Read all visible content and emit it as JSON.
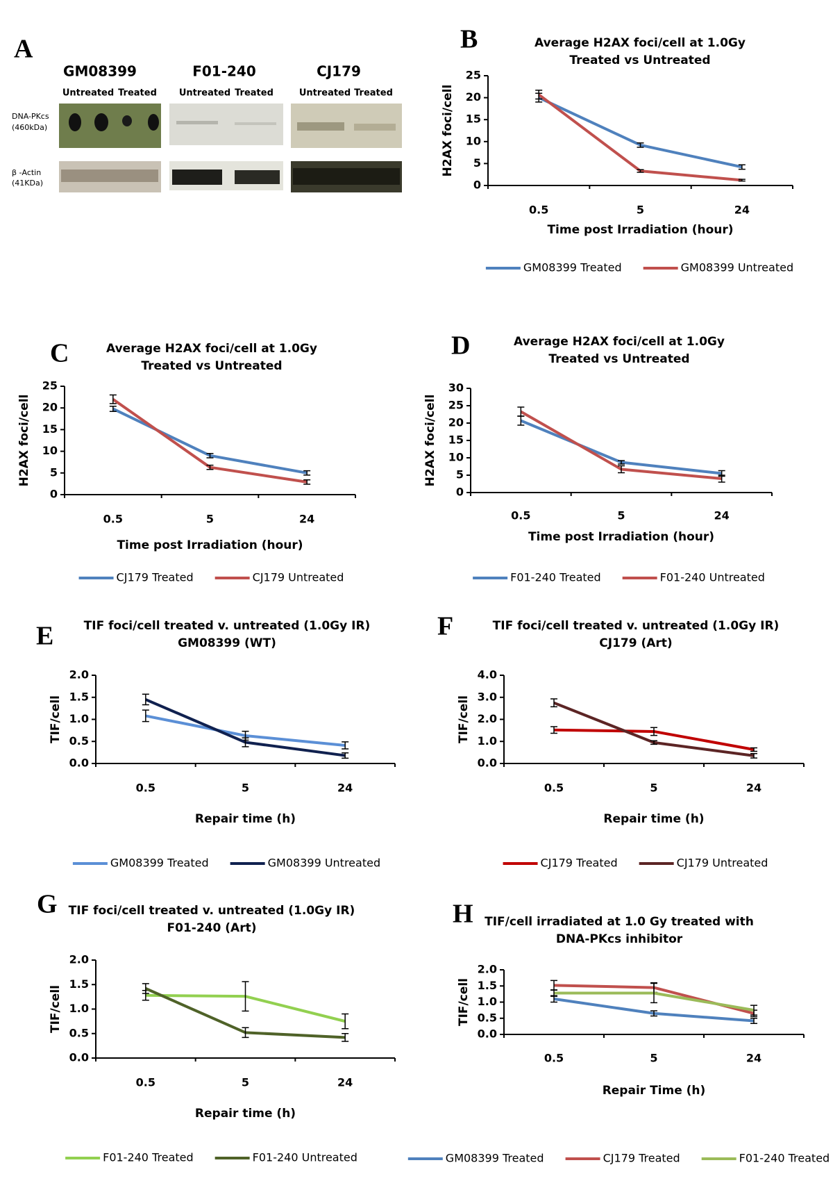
{
  "blot": {
    "label": "A",
    "cell_lines": [
      {
        "name": "GM08399",
        "lanes": [
          "Untreated",
          "Treated"
        ]
      },
      {
        "name": "F01-240",
        "lanes": [
          "Untreated",
          "Treated"
        ]
      },
      {
        "name": "CJ179",
        "lanes": [
          "Untreated",
          "Treated"
        ]
      }
    ],
    "rows": [
      {
        "name": "DNA-PKcs",
        "size": "(460kDa)"
      },
      {
        "name": "β -Actin",
        "size": "(41KDa)"
      }
    ]
  },
  "chart_data": [
    {
      "type": "line",
      "label": "B",
      "title": [
        "Average H2AX foci/cell at 1.0Gy",
        "Treated vs Untreated"
      ],
      "x_label": "Time post Irradiation (hour)",
      "y_label": "H2AX foci/cell",
      "categories": [
        "0.5",
        "5",
        "24"
      ],
      "ylim": [
        0,
        25
      ],
      "yticks": [
        0,
        5,
        10,
        15,
        20,
        25
      ],
      "legend": "bottom",
      "series": [
        {
          "name": "GM08399 Treated",
          "color": "#4f81bd",
          "values": [
            20,
            9.2,
            4.2
          ],
          "errors": [
            1,
            0.5,
            0.5
          ]
        },
        {
          "name": "GM08399 Untreated",
          "color": "#c0504d",
          "values": [
            20.7,
            3.3,
            1.2
          ],
          "errors": [
            1,
            0.3,
            0.2
          ]
        }
      ]
    },
    {
      "type": "line",
      "label": "C",
      "title": [
        "Average H2AX foci/cell at 1.0Gy",
        "Treated vs Untreated"
      ],
      "x_label": "Time post Irradiation (hour)",
      "y_label": "H2AX foci/cell",
      "categories": [
        "0.5",
        "5",
        "24"
      ],
      "ylim": [
        0,
        25
      ],
      "yticks": [
        0,
        5,
        10,
        15,
        20,
        25
      ],
      "legend": "bottom",
      "series": [
        {
          "name": "CJ179 Treated",
          "color": "#4f81bd",
          "values": [
            19.8,
            9,
            5
          ],
          "errors": [
            0.6,
            0.5,
            0.5
          ]
        },
        {
          "name": "CJ179 Untreated",
          "color": "#c0504d",
          "values": [
            22,
            6.3,
            2.9
          ],
          "errors": [
            1,
            0.5,
            0.5
          ]
        }
      ]
    },
    {
      "type": "line",
      "label": "D",
      "title": [
        "Average H2AX foci/cell at 1.0Gy",
        "Treated vs Untreated"
      ],
      "x_label": "Time post Irradiation (hour)",
      "y_label": "H2AX foci/cell",
      "categories": [
        "0.5",
        "5",
        "24"
      ],
      "ylim": [
        0,
        30
      ],
      "yticks": [
        0,
        5,
        10,
        15,
        20,
        25,
        30
      ],
      "legend": "bottom",
      "series": [
        {
          "name": "F01-240 Treated",
          "color": "#4f81bd",
          "values": [
            20.7,
            8.7,
            5.5
          ],
          "errors": [
            1.3,
            0.5,
            0.8
          ]
        },
        {
          "name": "F01-240 Untreated",
          "color": "#c0504d",
          "values": [
            23.3,
            6.7,
            4
          ],
          "errors": [
            1.3,
            1,
            1
          ]
        }
      ]
    },
    {
      "type": "line",
      "label": "E",
      "title": [
        "TIF foci/cell treated v. untreated (1.0Gy IR)",
        "GM08399 (WT)"
      ],
      "x_label": "Repair time (h)",
      "y_label": "TIF/cell",
      "categories": [
        "0.5",
        "5",
        "24"
      ],
      "ylim": [
        0,
        2
      ],
      "yticks": [
        {
          "value": 0,
          "label": "0.0"
        },
        {
          "value": 0.5,
          "label": "0.5"
        },
        {
          "value": 1,
          "label": "1.0"
        },
        {
          "value": 1.5,
          "label": "1.5"
        },
        {
          "value": 2,
          "label": "2.0"
        }
      ],
      "legend": "bottom",
      "series": [
        {
          "name": "GM08399 Treated",
          "color": "#5b8fd6",
          "values": [
            1.08,
            0.63,
            0.41
          ],
          "errors": [
            0.13,
            0.1,
            0.08
          ]
        },
        {
          "name": "GM08399 Untreated",
          "color": "#10214f",
          "values": [
            1.45,
            0.48,
            0.18
          ],
          "errors": [
            0.12,
            0.1,
            0.06
          ]
        }
      ]
    },
    {
      "type": "line",
      "label": "F",
      "title": [
        "TIF foci/cell treated v. untreated (1.0Gy IR)",
        "CJ179 (Art)"
      ],
      "x_label": "Repair time (h)",
      "y_label": "TIF/cell",
      "categories": [
        "0.5",
        "5",
        "24"
      ],
      "ylim": [
        0,
        4
      ],
      "yticks": [
        {
          "value": 0,
          "label": "0.0"
        },
        {
          "value": 1,
          "label": "1.0"
        },
        {
          "value": 2,
          "label": "2.0"
        },
        {
          "value": 3,
          "label": "3.0"
        },
        {
          "value": 4,
          "label": "4.0"
        }
      ],
      "legend": "bottom",
      "series": [
        {
          "name": "CJ179 Treated",
          "color": "#c00000",
          "values": [
            1.52,
            1.45,
            0.63
          ],
          "errors": [
            0.15,
            0.18,
            0.08
          ]
        },
        {
          "name": "CJ179 Untreated",
          "color": "#5c2525",
          "values": [
            2.75,
            0.95,
            0.35
          ],
          "errors": [
            0.18,
            0.08,
            0.1
          ]
        }
      ]
    },
    {
      "type": "line",
      "label": "G",
      "title": [
        "TIF foci/cell treated v. untreated (1.0Gy IR)",
        "F01-240 (Art)"
      ],
      "x_label": "Repair time (h)",
      "y_label": "TIF/cell",
      "categories": [
        "0.5",
        "5",
        "24"
      ],
      "ylim": [
        0,
        2
      ],
      "yticks": [
        {
          "value": 0,
          "label": "0.0"
        },
        {
          "value": 0.5,
          "label": "0.5"
        },
        {
          "value": 1,
          "label": "1.0"
        },
        {
          "value": 1.5,
          "label": "1.5"
        },
        {
          "value": 2,
          "label": "2.0"
        }
      ],
      "legend": "bottom",
      "series": [
        {
          "name": "F01-240 Treated",
          "color": "#92d050",
          "values": [
            1.28,
            1.26,
            0.75
          ],
          "errors": [
            0.1,
            0.3,
            0.15
          ]
        },
        {
          "name": "F01-240 Untreated",
          "color": "#4f6228",
          "values": [
            1.42,
            0.52,
            0.42
          ],
          "errors": [
            0.1,
            0.1,
            0.08
          ]
        }
      ]
    },
    {
      "type": "line",
      "label": "H",
      "title": [
        "TIF/cell irradiated at 1.0 Gy treated with",
        "DNA-PKcs inhibitor"
      ],
      "x_label": "Repair Time (h)",
      "y_label": "TIF/cell",
      "categories": [
        "0.5",
        "5",
        "24"
      ],
      "ylim": [
        0,
        2
      ],
      "yticks": [
        {
          "value": 0,
          "label": "0.0"
        },
        {
          "value": 0.5,
          "label": "0.5"
        },
        {
          "value": 1,
          "label": "1.0"
        },
        {
          "value": 1.5,
          "label": "1.5"
        },
        {
          "value": 2,
          "label": "2.0"
        }
      ],
      "legend": "bottom",
      "series": [
        {
          "name": "GM08399 Treated",
          "color": "#4f81bd",
          "values": [
            1.1,
            0.65,
            0.42
          ],
          "errors": [
            0.1,
            0.08,
            0.08
          ]
        },
        {
          "name": "CJ179 Treated",
          "color": "#c0504d",
          "values": [
            1.52,
            1.45,
            0.65
          ],
          "errors": [
            0.15,
            0.15,
            0.1
          ]
        },
        {
          "name": "F01-240 Treated",
          "color": "#9bbb59",
          "values": [
            1.28,
            1.28,
            0.75
          ],
          "errors": [
            0.1,
            0.3,
            0.15
          ]
        }
      ]
    }
  ]
}
